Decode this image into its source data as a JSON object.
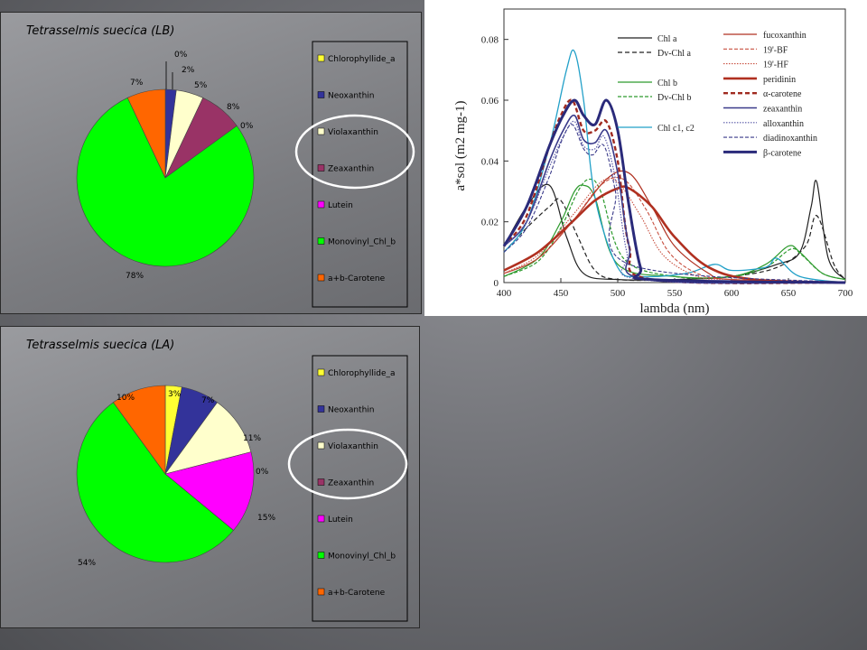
{
  "chart_data": [
    {
      "type": "pie",
      "title": "Tetrasselmis suecica (LB)",
      "categories": [
        "Chlorophyllide_a",
        "Neoxanthin",
        "Violaxanthin",
        "Zeaxanthin",
        "Lutein",
        "Monovinyl_Chl_b",
        "a+b-Carotene"
      ],
      "values": [
        0,
        2,
        5,
        8,
        0,
        78,
        7
      ],
      "labels": [
        "0%",
        "2%",
        "5%",
        "8%",
        "0%",
        "78%",
        "7%"
      ],
      "colors": [
        "#ffff33",
        "#33339a",
        "#ffffcc",
        "#993366",
        "#ff00ff",
        "#00ff00",
        "#ff6600"
      ],
      "legend_position": "right"
    },
    {
      "type": "pie",
      "title": "Tetrasselmis suecica (LA)",
      "categories": [
        "Chlorophyllide_a",
        "Neoxanthin",
        "Violaxanthin",
        "Zeaxanthin",
        "Lutein",
        "Monovinyl_Chl_b",
        "a+b-Carotene"
      ],
      "values": [
        3,
        7,
        11,
        0,
        15,
        54,
        10
      ],
      "labels": [
        "3%",
        "7%",
        "11%",
        "0%",
        "15%",
        "54%",
        "10%"
      ],
      "colors": [
        "#ffff33",
        "#33339a",
        "#ffffcc",
        "#993366",
        "#ff00ff",
        "#00ff00",
        "#ff6600"
      ],
      "legend_position": "right"
    },
    {
      "type": "line",
      "xlabel": "lambda (nm)",
      "ylabel": "a*sol (m2 mg-1)",
      "xlim": [
        400,
        700
      ],
      "ylim": [
        0,
        0.09
      ],
      "xticks": [
        "400",
        "450",
        "500",
        "550",
        "600",
        "650",
        "700"
      ],
      "yticks": [
        "0",
        "0.02",
        "0.04",
        "0.06",
        "0.08"
      ],
      "series": [
        {
          "name": "Chl a",
          "color": "#222222",
          "width": 1.2,
          "dash": "",
          "x": [
            400,
            420,
            440,
            455,
            470,
            500,
            550,
            600,
            640,
            660,
            670,
            675,
            685,
            700
          ],
          "y": [
            0.012,
            0.025,
            0.032,
            0.015,
            0.003,
            0.001,
            0.001,
            0.002,
            0.006,
            0.01,
            0.025,
            0.033,
            0.008,
            0.001
          ]
        },
        {
          "name": "Dv-Chl a",
          "color": "#222222",
          "width": 1.2,
          "dash": "5,3",
          "x": [
            400,
            420,
            440,
            450,
            465,
            480,
            500,
            550,
            600,
            640,
            665,
            675,
            690,
            700
          ],
          "y": [
            0.01,
            0.018,
            0.025,
            0.027,
            0.015,
            0.004,
            0.001,
            0.001,
            0.002,
            0.005,
            0.012,
            0.022,
            0.006,
            0.001
          ]
        },
        {
          "name": "Chl b",
          "color": "#2e9b2e",
          "width": 1.2,
          "dash": "",
          "x": [
            400,
            430,
            450,
            462,
            470,
            480,
            500,
            550,
            600,
            630,
            650,
            660,
            680,
            700
          ],
          "y": [
            0.002,
            0.008,
            0.02,
            0.03,
            0.032,
            0.028,
            0.006,
            0.002,
            0.002,
            0.006,
            0.012,
            0.01,
            0.003,
            0.001
          ]
        },
        {
          "name": "Dv-Chl b",
          "color": "#2e9b2e",
          "width": 1.2,
          "dash": "4,2",
          "x": [
            400,
            430,
            450,
            465,
            475,
            485,
            505,
            550,
            600,
            630,
            652,
            662,
            680,
            700
          ],
          "y": [
            0.002,
            0.007,
            0.018,
            0.03,
            0.034,
            0.03,
            0.008,
            0.002,
            0.002,
            0.005,
            0.011,
            0.009,
            0.003,
            0.001
          ]
        },
        {
          "name": "Chl c1, c2",
          "color": "#22a0c8",
          "width": 1.3,
          "dash": "",
          "x": [
            400,
            420,
            440,
            455,
            462,
            470,
            480,
            500,
            520,
            560,
            585,
            600,
            630,
            640,
            660,
            700
          ],
          "y": [
            0.01,
            0.02,
            0.045,
            0.07,
            0.076,
            0.06,
            0.028,
            0.005,
            0.002,
            0.003,
            0.006,
            0.004,
            0.005,
            0.008,
            0.002,
            0.0
          ]
        },
        {
          "name": "fucoxanthin",
          "color": "#b03020",
          "width": 1.2,
          "dash": "",
          "x": [
            400,
            430,
            460,
            490,
            510,
            530,
            550,
            580,
            600,
            700
          ],
          "y": [
            0.003,
            0.008,
            0.02,
            0.034,
            0.036,
            0.025,
            0.012,
            0.003,
            0.001,
            0.0
          ]
        },
        {
          "name": "19'-BF",
          "color": "#c85040",
          "width": 1.1,
          "dash": "4,2",
          "x": [
            400,
            430,
            460,
            485,
            505,
            525,
            545,
            570,
            600,
            700
          ],
          "y": [
            0.003,
            0.008,
            0.02,
            0.032,
            0.034,
            0.024,
            0.01,
            0.003,
            0.001,
            0.0
          ]
        },
        {
          "name": "19'-HF",
          "color": "#c85040",
          "width": 1.1,
          "dash": "1.5,1.5",
          "x": [
            400,
            430,
            460,
            485,
            500,
            520,
            540,
            570,
            600,
            700
          ],
          "y": [
            0.003,
            0.009,
            0.022,
            0.033,
            0.033,
            0.022,
            0.009,
            0.002,
            0.001,
            0.0
          ]
        },
        {
          "name": "peridinin",
          "color": "#b03020",
          "width": 2.6,
          "dash": "",
          "x": [
            400,
            430,
            460,
            480,
            500,
            510,
            530,
            550,
            580,
            620,
            700
          ],
          "y": [
            0.004,
            0.01,
            0.02,
            0.027,
            0.031,
            0.031,
            0.025,
            0.015,
            0.005,
            0.001,
            0.0
          ]
        },
        {
          "name": "α-carotene",
          "color": "#a02a20",
          "width": 2.4,
          "dash": "5,3",
          "x": [
            400,
            420,
            440,
            450,
            460,
            470,
            480,
            490,
            500,
            510,
            530,
            700
          ],
          "y": [
            0.012,
            0.022,
            0.045,
            0.055,
            0.06,
            0.05,
            0.05,
            0.053,
            0.04,
            0.012,
            0.001,
            0.0
          ]
        },
        {
          "name": "zeaxanthin",
          "color": "#3a3a8a",
          "width": 1.6,
          "dash": "",
          "x": [
            400,
            420,
            440,
            452,
            462,
            470,
            480,
            490,
            500,
            510,
            525,
            700
          ],
          "y": [
            0.012,
            0.02,
            0.04,
            0.05,
            0.055,
            0.047,
            0.046,
            0.05,
            0.036,
            0.012,
            0.001,
            0.0
          ]
        },
        {
          "name": "alloxanthin",
          "color": "#5a5aa8",
          "width": 1.2,
          "dash": "1.5,1.5",
          "x": [
            400,
            420,
            440,
            452,
            462,
            470,
            480,
            488,
            498,
            508,
            520,
            700
          ],
          "y": [
            0.012,
            0.02,
            0.038,
            0.048,
            0.053,
            0.045,
            0.044,
            0.048,
            0.034,
            0.01,
            0.001,
            0.0
          ]
        },
        {
          "name": "diadinoxanthin",
          "color": "#3a3a8a",
          "width": 1.1,
          "dash": "4,2",
          "x": [
            400,
            420,
            440,
            450,
            460,
            470,
            478,
            488,
            498,
            510,
            700
          ],
          "y": [
            0.01,
            0.018,
            0.035,
            0.046,
            0.052,
            0.044,
            0.042,
            0.045,
            0.03,
            0.006,
            0.0
          ]
        },
        {
          "name": "β-carotene",
          "color": "#2a2a7a",
          "width": 3.0,
          "dash": "",
          "x": [
            400,
            420,
            440,
            452,
            462,
            470,
            480,
            490,
            500,
            510,
            520,
            530,
            700
          ],
          "y": [
            0.012,
            0.025,
            0.045,
            0.055,
            0.06,
            0.055,
            0.052,
            0.06,
            0.05,
            0.025,
            0.005,
            0.001,
            0.0
          ]
        }
      ],
      "legend_position": "top"
    }
  ],
  "annotations": {
    "circle_color": "#ffffff"
  }
}
